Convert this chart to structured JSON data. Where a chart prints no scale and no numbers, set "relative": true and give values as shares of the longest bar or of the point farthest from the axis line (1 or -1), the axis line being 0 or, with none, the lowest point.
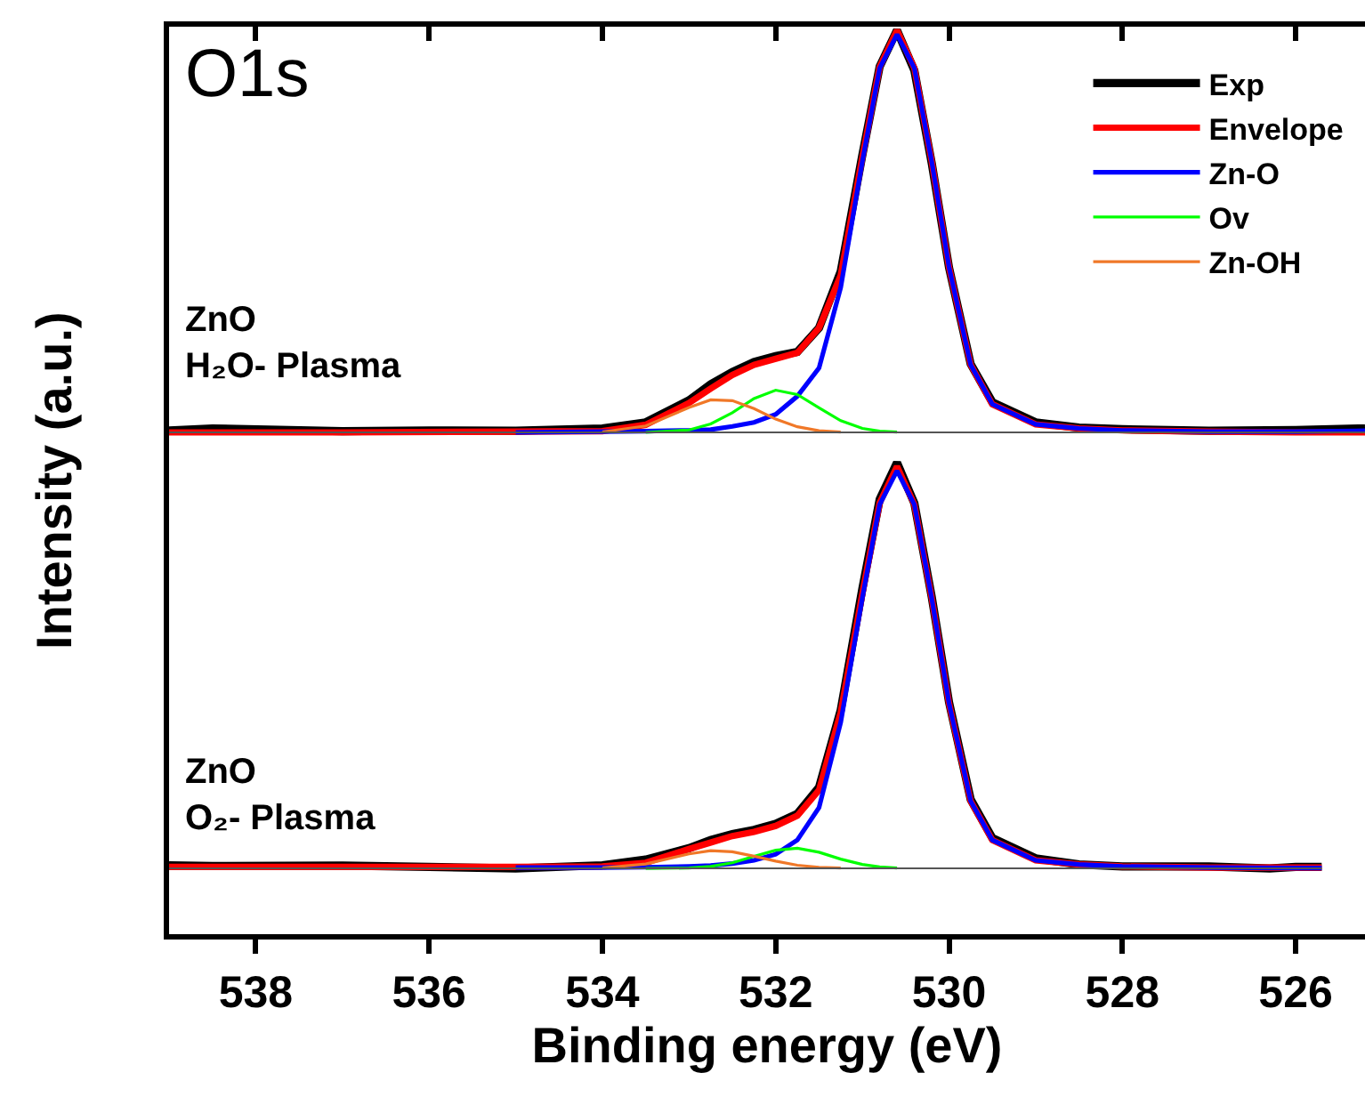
{
  "chart_data": [
    {
      "type": "line",
      "relative": true,
      "tick_labels": false,
      "legend": "top right",
      "marker": "none",
      "line_style": "solid",
      "ylabel": "Intensity (a.u.)",
      "annotations": [
        "O1s",
        "ZnO\nH₂O- Plasma"
      ],
      "xlim": [
        539,
        525.2
      ],
      "xticks": [
        538,
        536,
        534,
        532,
        530,
        528,
        526
      ],
      "series": [
        {
          "name": "Exp",
          "color": "#000000",
          "x": [
            539,
            538.5,
            537,
            536,
            535,
            534,
            533.5,
            533,
            532.75,
            532.5,
            532.25,
            532,
            531.75,
            531.5,
            531.25,
            531,
            530.8,
            530.6,
            530.4,
            530.2,
            530,
            529.75,
            529.5,
            529,
            528.5,
            528,
            527,
            526,
            525.2
          ],
          "values": [
            0.005,
            0.01,
            0.003,
            0.005,
            0.004,
            0.01,
            0.025,
            0.08,
            0.12,
            0.15,
            0.175,
            0.19,
            0.2,
            0.26,
            0.4,
            0.69,
            0.91,
            1.0,
            0.9,
            0.67,
            0.41,
            0.17,
            0.075,
            0.025,
            0.012,
            0.008,
            0.004,
            0.006,
            0.01
          ]
        },
        {
          "name": "Envelope",
          "color": "#ff0000",
          "x": [
            539,
            537,
            535,
            534,
            533.5,
            533,
            532.75,
            532.5,
            532.25,
            532,
            531.75,
            531.5,
            531.25,
            531,
            530.8,
            530.6,
            530.4,
            530.2,
            530,
            529.75,
            529.5,
            529,
            528.5,
            528,
            527,
            526,
            525.2
          ],
          "values": [
            0,
            0,
            0.002,
            0.003,
            0.019,
            0.073,
            0.109,
            0.143,
            0.168,
            0.183,
            0.198,
            0.26,
            0.39,
            0.684,
            0.909,
            1.0,
            0.906,
            0.674,
            0.411,
            0.168,
            0.07,
            0.02,
            0.01,
            0.005,
            0.002,
            0,
            0
          ]
        },
        {
          "name": "Zn-O",
          "color": "#0000ff",
          "x": [
            535,
            534,
            533.5,
            533,
            532.75,
            532.5,
            532.25,
            532,
            531.75,
            531.5,
            531.25,
            531,
            530.8,
            530.6,
            530.4,
            530.2,
            530,
            529.75,
            529.5,
            529,
            528.5,
            528,
            527,
            526,
            525.2
          ],
          "values": [
            0,
            0.002,
            0.003,
            0.005,
            0.007,
            0.015,
            0.025,
            0.045,
            0.09,
            0.16,
            0.36,
            0.674,
            0.906,
            0.99,
            0.906,
            0.674,
            0.411,
            0.168,
            0.07,
            0.02,
            0.01,
            0.005,
            0.002,
            0.002,
            0.004
          ]
        },
        {
          "name": "Ov",
          "color": "#00ff00",
          "x": [
            533.5,
            533,
            532.75,
            532.5,
            532.25,
            532,
            531.75,
            531.5,
            531.25,
            531,
            530.8,
            530.6
          ],
          "values": [
            0,
            0.006,
            0.021,
            0.049,
            0.084,
            0.105,
            0.094,
            0.061,
            0.029,
            0.01,
            0.003,
            0.001
          ]
        },
        {
          "name": "Zn-OH",
          "color": "#f07828",
          "x": [
            534,
            533.5,
            533,
            532.75,
            532.5,
            532.25,
            532,
            531.75,
            531.5,
            531.25
          ],
          "values": [
            0.001,
            0.016,
            0.062,
            0.081,
            0.079,
            0.059,
            0.033,
            0.014,
            0.004,
            0.001
          ]
        },
        {
          "name": null,
          "color": "#555555",
          "x": [
            539,
            525.2
          ],
          "values": [
            0,
            0
          ]
        }
      ]
    },
    {
      "type": "line",
      "relative": true,
      "tick_labels": "x",
      "marker": "none",
      "line_style": "solid",
      "xlabel": "Binding energy (eV)",
      "annotations": [
        "ZnO\nO₂- Plasma"
      ],
      "xlim": [
        539,
        525.2
      ],
      "xticks": [
        538,
        536,
        534,
        532,
        530,
        528,
        526
      ],
      "series": [
        {
          "color": "#000000",
          "x": [
            539,
            538.5,
            537,
            536,
            535,
            534,
            533.5,
            533,
            532.75,
            532.5,
            532.25,
            532,
            531.75,
            531.5,
            531.25,
            531,
            530.8,
            530.6,
            530.4,
            530.2,
            530,
            529.75,
            529.5,
            529,
            528.5,
            528,
            527,
            526.3,
            526,
            525.7
          ],
          "values": [
            0.008,
            0.006,
            0.007,
            0.004,
            0.0,
            0.008,
            0.022,
            0.05,
            0.07,
            0.085,
            0.095,
            0.11,
            0.135,
            0.2,
            0.39,
            0.69,
            0.91,
            1.0,
            0.9,
            0.67,
            0.41,
            0.17,
            0.075,
            0.025,
            0.01,
            0.005,
            0.005,
            0.0,
            0.004,
            0.004
          ]
        },
        {
          "color": "#ff0000",
          "x": [
            539,
            537,
            535,
            534,
            533.5,
            533,
            532.75,
            532.5,
            532.25,
            532,
            531.75,
            531.5,
            531.25,
            531,
            530.8,
            530.6,
            530.4,
            530.2,
            530,
            529.75,
            529.5,
            529,
            528.5,
            528,
            527,
            526,
            525.7
          ],
          "values": [
            0.004,
            0.004,
            0.004,
            0.005,
            0.014,
            0.048,
            0.064,
            0.08,
            0.09,
            0.105,
            0.13,
            0.193,
            0.384,
            0.677,
            0.901,
            0.991,
            0.897,
            0.667,
            0.407,
            0.166,
            0.07,
            0.02,
            0.01,
            0.005,
            0.002,
            0.002,
            0.002
          ]
        },
        {
          "color": "#0000ff",
          "x": [
            535,
            534,
            533.5,
            533,
            532.75,
            532.5,
            532.25,
            532,
            531.75,
            531.5,
            531.25,
            531,
            530.8,
            530.6,
            530.4,
            530.2,
            530,
            529.75,
            529.5,
            529,
            528.5,
            528,
            527,
            526,
            525.7
          ],
          "values": [
            0.002,
            0.002,
            0.003,
            0.005,
            0.007,
            0.012,
            0.02,
            0.035,
            0.07,
            0.15,
            0.36,
            0.667,
            0.897,
            0.98,
            0.897,
            0.667,
            0.407,
            0.166,
            0.07,
            0.02,
            0.01,
            0.005,
            0.002,
            0.001,
            0.001
          ]
        },
        {
          "color": "#00ff00",
          "x": [
            533.5,
            533,
            532.75,
            532.5,
            532.25,
            532,
            531.75,
            531.5,
            531.25,
            531,
            530.8,
            530.6
          ],
          "values": [
            0.0,
            0.001,
            0.005,
            0.014,
            0.03,
            0.045,
            0.05,
            0.04,
            0.023,
            0.01,
            0.004,
            0.001
          ]
        },
        {
          "color": "#f07828",
          "x": [
            534,
            533.5,
            533,
            532.75,
            532.5,
            532.25,
            532,
            531.75,
            531.5,
            531.25
          ],
          "values": [
            0.001,
            0.011,
            0.036,
            0.044,
            0.041,
            0.03,
            0.018,
            0.008,
            0.003,
            0.001
          ]
        },
        {
          "color": "#555555",
          "x": [
            539,
            525.7
          ],
          "values": [
            0,
            0
          ]
        }
      ]
    }
  ]
}
